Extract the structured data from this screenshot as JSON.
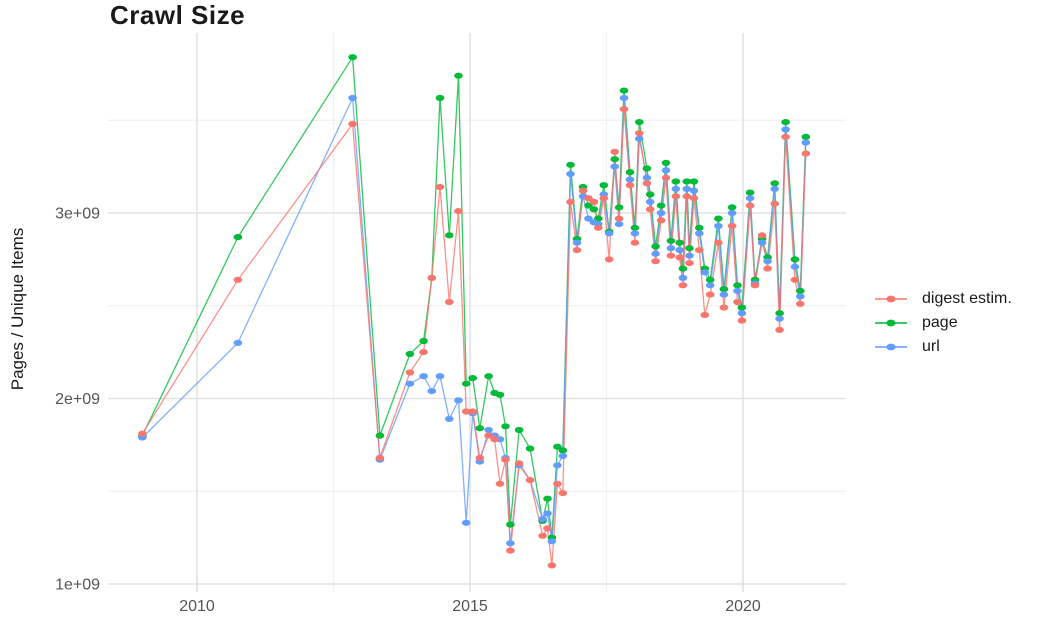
{
  "title": "Crawl Size",
  "y_axis": {
    "label": "Pages / Unique Items",
    "tick_labels": [
      "1e+09",
      "2e+09",
      "3e+09"
    ],
    "tick_values_billions": [
      1,
      2,
      3
    ],
    "minor_gridlines_billions": [
      1.5,
      2.5,
      3.5
    ]
  },
  "x_axis": {
    "tick_labels": [
      "2010",
      "2015",
      "2020"
    ],
    "tick_values": [
      2010,
      2015,
      2020
    ],
    "minor_gridlines": [
      2012.5,
      2017.5
    ]
  },
  "legend": {
    "items": [
      {
        "label": "digest estim.",
        "color": "#F8766D"
      },
      {
        "label": "page",
        "color": "#00BA38"
      },
      {
        "label": "url",
        "color": "#619CFF"
      }
    ]
  },
  "colors": {
    "digest": "#F8766D",
    "page": "#00BA38",
    "url": "#619CFF",
    "grid_major": "#e2e2e2",
    "grid_minor": "#f0f0f0",
    "axis_text": "#555555"
  },
  "chart_data": {
    "type": "line",
    "title": "Crawl Size",
    "xlabel": "",
    "ylabel": "Pages / Unique Items",
    "y_unit": "billions (1e9)",
    "xlim": [
      2008.5,
      2021.9
    ],
    "ylim_billions": [
      0.95,
      4.0
    ],
    "grid": true,
    "legend_position": "right",
    "x": [
      2009.0,
      2010.75,
      2012.85,
      2013.35,
      2013.9,
      2014.15,
      2014.3,
      2014.45,
      2014.62,
      2014.79,
      2014.93,
      2015.05,
      2015.18,
      2015.34,
      2015.45,
      2015.55,
      2015.65,
      2015.74,
      2015.9,
      2016.1,
      2016.33,
      2016.42,
      2016.5,
      2016.6,
      2016.7,
      2016.84,
      2016.96,
      2017.07,
      2017.17,
      2017.27,
      2017.35,
      2017.45,
      2017.55,
      2017.65,
      2017.73,
      2017.82,
      2017.93,
      2018.02,
      2018.1,
      2018.24,
      2018.3,
      2018.4,
      2018.5,
      2018.59,
      2018.68,
      2018.77,
      2018.84,
      2018.9,
      2018.97,
      2019.02,
      2019.1,
      2019.2,
      2019.3,
      2019.4,
      2019.55,
      2019.65,
      2019.8,
      2019.9,
      2019.98,
      2020.13,
      2020.22,
      2020.35,
      2020.45,
      2020.58,
      2020.67,
      2020.78,
      2020.95,
      2021.05,
      2021.15
    ],
    "series": [
      {
        "name": "page",
        "color": "#00BA38",
        "values_billions": [
          1.8,
          2.87,
          3.84,
          1.8,
          2.24,
          2.31,
          2.65,
          3.62,
          2.88,
          3.74,
          2.08,
          2.11,
          1.84,
          2.12,
          2.03,
          2.02,
          1.85,
          1.32,
          1.83,
          1.73,
          1.34,
          1.46,
          1.25,
          1.74,
          1.72,
          3.26,
          2.86,
          3.14,
          3.04,
          3.02,
          2.97,
          3.15,
          2.9,
          3.29,
          3.03,
          3.66,
          3.22,
          2.92,
          3.49,
          3.24,
          3.1,
          2.82,
          3.04,
          3.27,
          2.85,
          3.17,
          2.84,
          2.7,
          3.17,
          2.81,
          3.17,
          2.92,
          2.7,
          2.64,
          2.97,
          2.59,
          3.03,
          2.61,
          2.49,
          3.11,
          2.64,
          2.86,
          2.76,
          3.16,
          2.46,
          3.49,
          2.75,
          2.58,
          3.41
        ]
      },
      {
        "name": "url",
        "color": "#619CFF",
        "values_billions": [
          1.79,
          2.3,
          3.62,
          1.67,
          2.08,
          2.12,
          2.04,
          2.12,
          1.89,
          1.99,
          1.33,
          1.92,
          1.66,
          1.83,
          1.8,
          1.78,
          1.68,
          1.22,
          1.64,
          1.56,
          1.35,
          1.38,
          1.23,
          1.64,
          1.69,
          3.21,
          2.84,
          3.09,
          2.97,
          2.95,
          2.94,
          3.1,
          2.89,
          3.25,
          2.94,
          3.62,
          3.18,
          2.89,
          3.4,
          3.19,
          3.06,
          2.78,
          3.0,
          3.23,
          2.81,
          3.13,
          2.8,
          2.65,
          3.13,
          2.77,
          3.12,
          2.89,
          2.68,
          2.61,
          2.93,
          2.56,
          3.0,
          2.58,
          2.46,
          3.08,
          2.62,
          2.84,
          2.74,
          3.13,
          2.43,
          3.45,
          2.71,
          2.55,
          3.38
        ]
      },
      {
        "name": "digest estim.",
        "color": "#F8766D",
        "values_billions": [
          1.81,
          2.64,
          3.48,
          1.68,
          2.14,
          2.25,
          2.65,
          3.14,
          2.52,
          3.01,
          1.93,
          1.93,
          1.68,
          1.8,
          1.78,
          1.54,
          1.67,
          1.18,
          1.65,
          1.56,
          1.26,
          1.3,
          1.1,
          1.54,
          1.49,
          3.06,
          2.8,
          3.12,
          3.08,
          3.06,
          2.92,
          3.08,
          2.75,
          3.33,
          2.97,
          3.56,
          3.15,
          2.84,
          3.43,
          3.16,
          3.02,
          2.74,
          2.96,
          3.19,
          2.77,
          3.09,
          2.76,
          2.61,
          3.09,
          2.73,
          3.08,
          2.8,
          2.45,
          2.56,
          2.84,
          2.49,
          2.93,
          2.52,
          2.42,
          3.04,
          2.61,
          2.88,
          2.7,
          3.05,
          2.37,
          3.41,
          2.64,
          2.51,
          3.32
        ]
      }
    ]
  }
}
